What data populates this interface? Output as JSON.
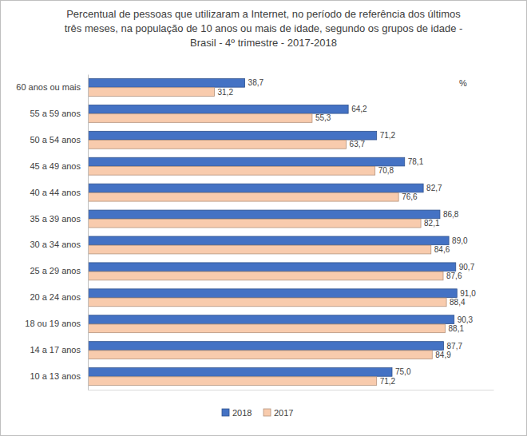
{
  "chart_data": {
    "type": "bar",
    "orientation": "horizontal",
    "title": "Percentual de pessoas que utilizaram a Internet, no período de referência dos últimos três meses, na população de 10 anos ou mais de idade,  segundo os grupos de idade - Brasil - 4º trimestre - 2017-2018",
    "annotations": [
      "%"
    ],
    "categories": [
      "60 anos ou mais",
      "55 a 59 anos",
      "50 a 54 anos",
      "45 a 49 anos",
      "40 a 44 anos",
      "35 a 39 anos",
      "30 a 34 anos",
      "25 a 29 anos",
      "20 a 24 anos",
      "18 ou 19 anos",
      "14 a 17 anos",
      "10 a 13 anos"
    ],
    "series": [
      {
        "name": "2018",
        "color": "#4472c4",
        "values": [
          38.7,
          64.2,
          71.2,
          78.1,
          82.7,
          86.8,
          89.0,
          90.7,
          91.0,
          90.3,
          87.7,
          75.0
        ],
        "value_labels": [
          "38,7",
          "64,2",
          "71,2",
          "78,1",
          "82,7",
          "86,8",
          "89,0",
          "90,7",
          "91,0",
          "90,3",
          "87,7",
          "75,0"
        ]
      },
      {
        "name": "2017",
        "color": "#f8cbad",
        "values": [
          31.2,
          55.3,
          63.7,
          70.8,
          76.6,
          82.1,
          84.6,
          87.6,
          88.4,
          88.1,
          84.9,
          71.2
        ],
        "value_labels": [
          "31,2",
          "55,3",
          "63,7",
          "70,8",
          "76,6",
          "82,1",
          "84,6",
          "87,6",
          "88,4",
          "88,1",
          "84,9",
          "71,2"
        ]
      }
    ],
    "xlim": [
      0,
      100
    ],
    "data_labels": true,
    "tick_labels": "y",
    "grid": false,
    "legend": "bottom"
  }
}
